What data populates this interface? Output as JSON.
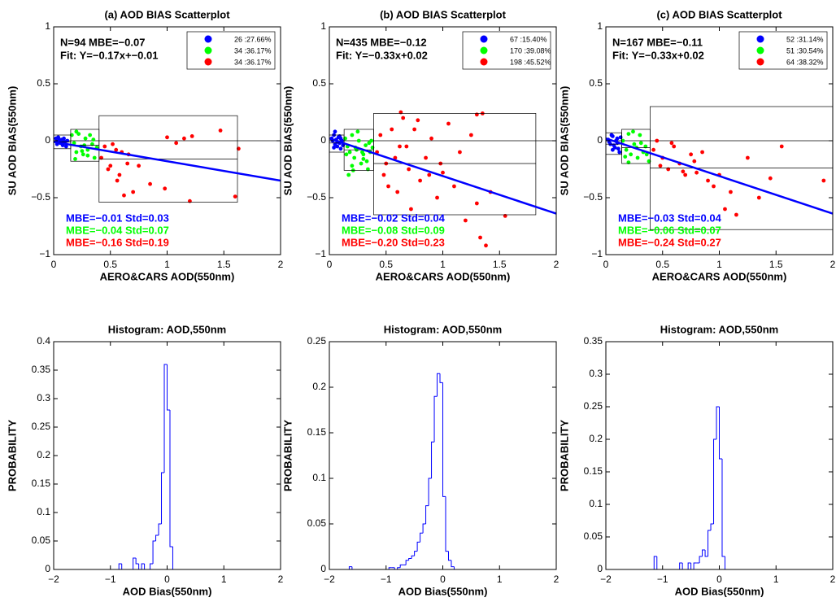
{
  "chart_data": [
    {
      "type": "scatter",
      "title": "(a) AOD BIAS Scatterplot",
      "x_label": "AERO&CARS AOD(550nm)",
      "y_label": "SU AOD BIAS(550nm)",
      "xlim": [
        0,
        2
      ],
      "ylim": [
        -1,
        1
      ],
      "xticks": [
        0,
        0.5,
        1,
        1.5,
        2
      ],
      "yticks": [
        {
          "value": -1,
          "label": "−1"
        },
        {
          "value": -0.5,
          "label": "−0.5"
        },
        0,
        0.5,
        1
      ],
      "annotations": [
        "N=94   MBE=−0.07",
        "Fit: Y=−0.17x+−0.01"
      ],
      "fit": {
        "slope": -0.17,
        "intercept": -0.01,
        "color": "#0000ff"
      },
      "series": [
        {
          "name": "26 :27.66%",
          "color": "#0000ff",
          "stat": "MBE=−0.01 Std=0.03",
          "x": [
            0.02,
            0.03,
            0.04,
            0.05,
            0.06,
            0.07,
            0.08,
            0.09,
            0.1,
            0.11,
            0.12,
            0.03,
            0.05,
            0.08
          ],
          "y": [
            0.02,
            -0.01,
            0.03,
            0,
            -0.02,
            0.01,
            -0.04,
            0.02,
            -0.01,
            -0.05,
            0,
            -0.03,
            0.01,
            -0.02
          ],
          "box": {
            "x": [
              0,
              0.15
            ],
            "y": [
              -0.07,
              0.05
            ],
            "mean": -0.01
          }
        },
        {
          "name": "34 :36.17%",
          "color": "#00ff00",
          "stat": "MBE=−0.04 Std=0.07",
          "x": [
            0.16,
            0.18,
            0.2,
            0.22,
            0.24,
            0.26,
            0.28,
            0.3,
            0.32,
            0.34,
            0.36,
            0.38,
            0.2,
            0.25,
            0.3,
            0.35,
            0.19,
            0.27
          ],
          "y": [
            0.05,
            -0.02,
            -0.1,
            0.06,
            -0.05,
            -0.12,
            0.02,
            -0.08,
            0.05,
            -0.03,
            -0.15,
            -0.06,
            0.08,
            -0.09,
            -0.13,
            0.01,
            -0.16,
            -0.04
          ],
          "box": {
            "x": [
              0.15,
              0.4
            ],
            "y": [
              -0.18,
              0.1
            ],
            "mean": -0.04
          }
        },
        {
          "name": "34 :36.17%",
          "color": "#ff0000",
          "stat": "MBE=−0.16 Std=0.19",
          "x": [
            0.42,
            0.45,
            0.5,
            0.52,
            0.55,
            0.58,
            0.6,
            0.62,
            0.65,
            0.7,
            0.75,
            0.85,
            0.98,
            1.0,
            1.08,
            1.15,
            1.2,
            1.22,
            1.47,
            1.6,
            1.63,
            0.48,
            0.66,
            0.56
          ],
          "y": [
            -0.15,
            -0.05,
            -0.22,
            -0.03,
            -0.08,
            -0.3,
            -0.1,
            -0.48,
            -0.2,
            -0.45,
            -0.22,
            -0.38,
            -0.42,
            0.03,
            -0.02,
            0.02,
            -0.53,
            0.04,
            0.09,
            -0.49,
            -0.07,
            -0.25,
            -0.12,
            -0.35
          ],
          "box": {
            "x": [
              0.4,
              1.62
            ],
            "y": [
              -0.54,
              0.22
            ],
            "mean": -0.16
          }
        }
      ]
    },
    {
      "type": "scatter",
      "title": "(b) AOD BIAS Scatterplot",
      "x_label": "AERO&CARS AOD(550nm)",
      "y_label": "SU AOD BIAS(550nm)",
      "xlim": [
        0,
        2
      ],
      "ylim": [
        -1,
        1
      ],
      "xticks": [
        0,
        0.5,
        1,
        1.5,
        2
      ],
      "yticks": [
        {
          "value": -1,
          "label": "−1"
        },
        {
          "value": -0.5,
          "label": "−0.5"
        },
        0,
        0.5,
        1
      ],
      "annotations": [
        "N=435 MBE=−0.12",
        "Fit: Y=−0.33x+0.02"
      ],
      "fit": {
        "slope": -0.33,
        "intercept": 0.02,
        "color": "#0000ff"
      },
      "series": [
        {
          "name": "67 :15.40%",
          "color": "#0000ff",
          "stat": "MBE=−0.02 Std=0.04",
          "x": [
            0.02,
            0.03,
            0.04,
            0.05,
            0.06,
            0.07,
            0.08,
            0.09,
            0.1,
            0.11,
            0.12,
            0.05,
            0.09,
            0.04,
            0.07,
            0.1
          ],
          "y": [
            0.02,
            0,
            0.05,
            -0.03,
            0.01,
            -0.05,
            0.03,
            -0.02,
            -0.07,
            0,
            -0.04,
            0.08,
            0.04,
            -0.06,
            -0.01,
            0.02
          ],
          "box": {
            "x": [
              0,
              0.13
            ],
            "y": [
              -0.1,
              0.05
            ],
            "mean": -0.02
          }
        },
        {
          "name": "170 :39.08%",
          "color": "#00ff00",
          "stat": "MBE=−0.08 Std=0.09",
          "x": [
            0.14,
            0.16,
            0.18,
            0.2,
            0.22,
            0.24,
            0.26,
            0.28,
            0.3,
            0.32,
            0.34,
            0.36,
            0.38,
            0.15,
            0.2,
            0.25,
            0.3,
            0.35,
            0.17,
            0.23,
            0.29,
            0.33,
            0.37,
            0.21
          ],
          "y": [
            0.02,
            -0.05,
            -0.1,
            0.05,
            -0.15,
            -0.08,
            0,
            -0.2,
            -0.12,
            -0.04,
            -0.25,
            -0.1,
            -0.06,
            -0.12,
            -0.22,
            0.08,
            -0.16,
            -0.02,
            -0.3,
            -0.06,
            -0.1,
            -0.18,
            0,
            -0.26
          ],
          "box": {
            "x": [
              0.13,
              0.39
            ],
            "y": [
              -0.26,
              0.1
            ],
            "mean": -0.08
          }
        },
        {
          "name": "198 :45.52%",
          "color": "#ff0000",
          "stat": "MBE=−0.20 Std=0.23",
          "x": [
            0.42,
            0.45,
            0.48,
            0.5,
            0.55,
            0.6,
            0.62,
            0.65,
            0.7,
            0.72,
            0.75,
            0.8,
            0.85,
            0.9,
            0.95,
            1.0,
            1.05,
            1.1,
            1.15,
            1.2,
            1.25,
            1.3,
            1.35,
            1.38,
            1.42,
            1.55,
            0.58,
            0.68,
            0.78,
            0.88,
            0.52,
            0.63,
            1.33,
            1.3,
            0.98
          ],
          "y": [
            -0.1,
            0.05,
            -0.3,
            -0.2,
            0.1,
            -0.45,
            -0.05,
            0.2,
            -0.25,
            -0.6,
            0.1,
            -0.35,
            -0.15,
            0.02,
            -0.5,
            -0.28,
            0.15,
            -0.4,
            -0.1,
            -0.7,
            0.05,
            -0.55,
            0.24,
            -0.92,
            -0.45,
            -0.66,
            -0.15,
            -0.05,
            0.18,
            -0.3,
            -0.4,
            0.25,
            -0.85,
            0.23,
            -0.2
          ],
          "box": {
            "x": [
              0.39,
              1.82
            ],
            "y": [
              -0.65,
              0.24
            ],
            "mean": -0.2
          }
        }
      ]
    },
    {
      "type": "scatter",
      "title": "(c) AOD BIAS Scatterplot",
      "x_label": "AERO&CARS AOD(550nm)",
      "y_label": "SU AOD BIAS(550nm)",
      "xlim": [
        0,
        2
      ],
      "ylim": [
        -1,
        1
      ],
      "xticks": [
        0,
        0.5,
        1,
        1.5,
        2
      ],
      "yticks": [
        {
          "value": -1,
          "label": "−1"
        },
        {
          "value": -0.5,
          "label": "−0.5"
        },
        0,
        0.5,
        1
      ],
      "annotations": [
        "N=167 MBE=−0.11",
        "Fit: Y=−0.33x+0.02"
      ],
      "fit": {
        "slope": -0.33,
        "intercept": 0.02,
        "color": "#0000ff"
      },
      "series": [
        {
          "name": "52 :31.14%",
          "color": "#0000ff",
          "stat": "MBE=−0.03 Std=0.04",
          "x": [
            0.02,
            0.04,
            0.06,
            0.08,
            0.1,
            0.12,
            0.03,
            0.05,
            0.07,
            0.09,
            0.11,
            0.13,
            0.06,
            0.1
          ],
          "y": [
            0.01,
            -0.03,
            0.04,
            -0.06,
            0.02,
            -0.1,
            -0.01,
            0.05,
            -0.04,
            0,
            -0.07,
            0.03,
            -0.08,
            -0.02
          ],
          "box": {
            "x": [
              0,
              0.14
            ],
            "y": [
              -0.12,
              0.07
            ],
            "mean": -0.03
          }
        },
        {
          "name": "51 :30.54%",
          "color": "#00ff00",
          "stat": "MBE=−0.06 Std=0.07",
          "x": [
            0.15,
            0.18,
            0.2,
            0.22,
            0.25,
            0.28,
            0.3,
            0.33,
            0.35,
            0.38,
            0.17,
            0.24,
            0.31,
            0.36,
            0.2,
            0.27
          ],
          "y": [
            0,
            -0.08,
            0.06,
            -0.12,
            -0.03,
            -0.15,
            0.05,
            -0.1,
            -0.05,
            -0.18,
            -0.14,
            0.08,
            -0.02,
            -0.12,
            -0.19,
            -0.06
          ],
          "box": {
            "x": [
              0.14,
              0.39
            ],
            "y": [
              -0.2,
              0.1
            ],
            "mean": -0.06
          }
        },
        {
          "name": "64 :38.32%",
          "color": "#ff0000",
          "stat": "MBE=−0.24 Std=0.27",
          "x": [
            0.42,
            0.45,
            0.5,
            0.55,
            0.6,
            0.65,
            0.7,
            0.75,
            0.8,
            0.85,
            0.9,
            0.95,
            1.0,
            1.05,
            1.1,
            1.15,
            1.25,
            1.35,
            1.45,
            1.55,
            1.92,
            0.48,
            0.58,
            0.68,
            0.78
          ],
          "y": [
            -0.08,
            0,
            -0.15,
            -0.25,
            -0.05,
            -0.2,
            -0.3,
            -0.12,
            -0.28,
            -0.1,
            -0.35,
            -0.4,
            -0.3,
            -0.6,
            -0.45,
            -0.65,
            -0.15,
            -0.5,
            -0.33,
            -0.05,
            -0.35,
            -0.22,
            -0.02,
            -0.27,
            -0.18
          ],
          "box": {
            "x": [
              0.39,
              2
            ],
            "y": [
              -0.78,
              0.3
            ],
            "mean": -0.24
          }
        }
      ]
    },
    {
      "type": "histogram",
      "title": "Histogram: AOD,550nm",
      "x_label": "AOD Bias(550nm)",
      "y_label": "PROBABILITY",
      "color": "#0000ff",
      "xlim": [
        -2,
        2
      ],
      "ylim": [
        0,
        0.4
      ],
      "xticks": [
        {
          "value": -2,
          "label": "−2"
        },
        {
          "value": -1,
          "label": "−1"
        },
        0,
        1,
        2
      ],
      "yticks": [
        0,
        0.05,
        0.1,
        0.15,
        0.2,
        0.25,
        0.3,
        0.35,
        0.4
      ],
      "bins": [
        -1,
        -0.95,
        -0.9,
        -0.85,
        -0.8,
        -0.75,
        -0.7,
        -0.65,
        -0.6,
        -0.55,
        -0.5,
        -0.45,
        -0.4,
        -0.35,
        -0.3,
        -0.25,
        -0.2,
        -0.15,
        -0.1,
        -0.05,
        0,
        0.05,
        0.1,
        0.15
      ],
      "values": [
        0,
        0,
        0,
        0.01,
        0,
        0,
        0,
        0,
        0.02,
        0.01,
        0,
        0.01,
        0,
        0,
        0.01,
        0.05,
        0.06,
        0.08,
        0.17,
        0.36,
        0.28,
        0.04,
        0
      ]
    },
    {
      "type": "histogram",
      "title": "Histogram: AOD,550nm",
      "x_label": "AOD Bias(550nm)",
      "y_label": "PROBABILITY",
      "color": "#0000ff",
      "xlim": [
        -2,
        2
      ],
      "ylim": [
        0,
        0.25
      ],
      "xticks": [
        {
          "value": -2,
          "label": "−2"
        },
        {
          "value": -1,
          "label": "−1"
        },
        0,
        1,
        2
      ],
      "yticks": [
        0,
        0.05,
        0.1,
        0.15,
        0.2,
        0.25
      ],
      "bins": [
        -1.65,
        -1.6,
        -1.55,
        -1.5,
        -1.45,
        -1.4,
        -1.35,
        -1.3,
        -1.25,
        -1.2,
        -1.15,
        -1.1,
        -1.05,
        -1,
        -0.95,
        -0.9,
        -0.85,
        -0.8,
        -0.75,
        -0.7,
        -0.65,
        -0.6,
        -0.55,
        -0.5,
        -0.45,
        -0.4,
        -0.35,
        -0.3,
        -0.25,
        -0.2,
        -0.15,
        -0.1,
        -0.05,
        0,
        0.05,
        0.1,
        0.15,
        0.2,
        0.25,
        0.3,
        0.35
      ],
      "values": [
        0.003,
        0,
        0,
        0,
        0,
        0,
        0,
        0,
        0,
        0,
        0,
        0,
        0,
        0,
        0.002,
        0.002,
        0,
        0.002,
        0.005,
        0.005,
        0.01,
        0.012,
        0.015,
        0.02,
        0.03,
        0.04,
        0.05,
        0.07,
        0.1,
        0.14,
        0.19,
        0.215,
        0.205,
        0.08,
        0.02,
        0.01,
        0.003,
        0,
        0,
        0
      ]
    },
    {
      "type": "histogram",
      "title": "Histogram: AOD,550nm",
      "x_label": "AOD Bias(550nm)",
      "y_label": "PROBABILITY",
      "color": "#0000ff",
      "xlim": [
        -2,
        2
      ],
      "ylim": [
        0,
        0.35
      ],
      "xticks": [
        {
          "value": -2,
          "label": "−2"
        },
        {
          "value": -1,
          "label": "−1"
        },
        0,
        1,
        2
      ],
      "yticks": [
        0,
        0.05,
        0.1,
        0.15,
        0.2,
        0.25,
        0.3,
        0.35
      ],
      "bins": [
        -1.2,
        -1.15,
        -1.1,
        -1.05,
        -1,
        -0.95,
        -0.9,
        -0.85,
        -0.8,
        -0.75,
        -0.7,
        -0.65,
        -0.6,
        -0.55,
        -0.5,
        -0.45,
        -0.4,
        -0.35,
        -0.3,
        -0.25,
        -0.2,
        -0.15,
        -0.1,
        -0.05,
        0,
        0.05,
        0.1,
        0.15
      ],
      "values": [
        0,
        0.02,
        0,
        0,
        0,
        0,
        0,
        0,
        0,
        0,
        0.01,
        0,
        0,
        0.01,
        0,
        0.01,
        0.01,
        0.02,
        0.03,
        0.02,
        0.06,
        0.07,
        0.2,
        0.25,
        0.17,
        0.02,
        0
      ]
    }
  ]
}
